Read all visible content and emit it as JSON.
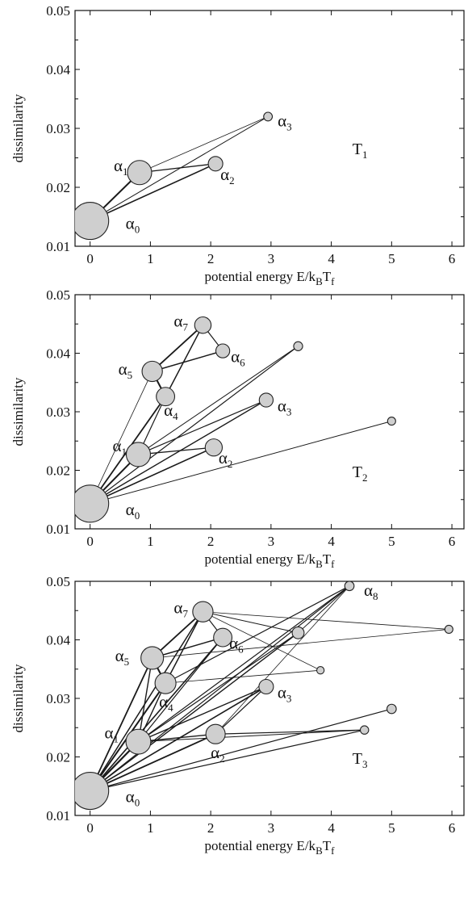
{
  "colors": {
    "node_fill": "#cfcfcf",
    "node_stroke": "#222222",
    "edge": "#1a1a1a",
    "axis": "#111111"
  },
  "chart_data": [
    {
      "type": "scatter",
      "panel_label": {
        "main": "T",
        "sub": "1"
      },
      "xlabel": "potential energy E/k_BT_f",
      "ylabel": "dissimilarity",
      "xlim": [
        -0.25,
        6.2
      ],
      "ylim": [
        0.01,
        0.05
      ],
      "x_ticks": [
        "0",
        "1",
        "2",
        "3",
        "4",
        "5",
        "6"
      ],
      "y_ticks": [
        "0.01",
        "0.02",
        "0.03",
        "0.04",
        "0.05"
      ],
      "nodes": [
        {
          "id": "a0",
          "x": 0.0,
          "y": 0.0143,
          "weight": 1.0,
          "label": {
            "sym": "α",
            "sub": "0"
          }
        },
        {
          "id": "a1",
          "x": 0.82,
          "y": 0.0225,
          "weight": 0.6,
          "label": {
            "sym": "α",
            "sub": "1"
          }
        },
        {
          "id": "a2",
          "x": 2.08,
          "y": 0.024,
          "weight": 0.3,
          "label": {
            "sym": "α",
            "sub": "2"
          }
        },
        {
          "id": "a3",
          "x": 2.95,
          "y": 0.032,
          "weight": 0.12,
          "label": {
            "sym": "α",
            "sub": "3"
          }
        }
      ],
      "edges": [
        {
          "from": "a0",
          "to": "a1",
          "w": 2.0
        },
        {
          "from": "a0",
          "to": "a2",
          "w": 1.6
        },
        {
          "from": "a1",
          "to": "a2",
          "w": 1.3
        },
        {
          "from": "a1",
          "to": "a3",
          "w": 0.8
        },
        {
          "from": "a0",
          "to": "a3",
          "w": 1.0
        }
      ]
    },
    {
      "type": "scatter",
      "panel_label": {
        "main": "T",
        "sub": "2"
      },
      "xlabel": "potential energy E/k_BT_f",
      "ylabel": "dissimilarity",
      "xlim": [
        -0.25,
        6.2
      ],
      "ylim": [
        0.01,
        0.05
      ],
      "x_ticks": [
        "0",
        "1",
        "2",
        "3",
        "4",
        "5",
        "6"
      ],
      "y_ticks": [
        "0.01",
        "0.02",
        "0.03",
        "0.04",
        "0.05"
      ],
      "nodes": [
        {
          "id": "a0",
          "x": 0.0,
          "y": 0.0143,
          "weight": 1.0,
          "label": {
            "sym": "α",
            "sub": "0"
          }
        },
        {
          "id": "a1",
          "x": 0.8,
          "y": 0.0227,
          "weight": 0.6,
          "label": {
            "sym": "α",
            "sub": "1"
          }
        },
        {
          "id": "a2",
          "x": 2.05,
          "y": 0.0239,
          "weight": 0.38,
          "label": {
            "sym": "α",
            "sub": "2"
          }
        },
        {
          "id": "a3",
          "x": 2.92,
          "y": 0.032,
          "weight": 0.28,
          "label": {
            "sym": "α",
            "sub": "3"
          }
        },
        {
          "id": "a4",
          "x": 1.25,
          "y": 0.0326,
          "weight": 0.42,
          "label": {
            "sym": "α",
            "sub": "4"
          }
        },
        {
          "id": "a5",
          "x": 1.03,
          "y": 0.0369,
          "weight": 0.48,
          "label": {
            "sym": "α",
            "sub": "5"
          }
        },
        {
          "id": "a6",
          "x": 2.2,
          "y": 0.0404,
          "weight": 0.28,
          "label": {
            "sym": "α",
            "sub": "6"
          }
        },
        {
          "id": "a7",
          "x": 1.87,
          "y": 0.0448,
          "weight": 0.36,
          "label": {
            "sym": "α",
            "sub": "7"
          }
        },
        {
          "id": "b1",
          "x": 3.45,
          "y": 0.0412,
          "weight": 0.13
        },
        {
          "id": "b2",
          "x": 5.0,
          "y": 0.0284,
          "weight": 0.1
        }
      ],
      "edges": [
        {
          "from": "a0",
          "to": "a1",
          "w": 2.0
        },
        {
          "from": "a0",
          "to": "a2",
          "w": 1.6
        },
        {
          "from": "a0",
          "to": "a3",
          "w": 1.4
        },
        {
          "from": "a0",
          "to": "a4",
          "w": 1.8
        },
        {
          "from": "a0",
          "to": "a5",
          "w": 0.8
        },
        {
          "from": "a0",
          "to": "b1",
          "w": 1.2
        },
        {
          "from": "a0",
          "to": "b2",
          "w": 1.0
        },
        {
          "from": "a1",
          "to": "a2",
          "w": 1.3
        },
        {
          "from": "a1",
          "to": "a3",
          "w": 1.2
        },
        {
          "from": "a1",
          "to": "a4",
          "w": 1.2
        },
        {
          "from": "a1",
          "to": "b1",
          "w": 1.0
        },
        {
          "from": "a5",
          "to": "a7",
          "w": 1.8
        },
        {
          "from": "a5",
          "to": "a6",
          "w": 1.5
        },
        {
          "from": "a5",
          "to": "a4",
          "w": 2.0
        },
        {
          "from": "a7",
          "to": "a6",
          "w": 1.2
        },
        {
          "from": "a7",
          "to": "a4",
          "w": 1.5
        }
      ]
    },
    {
      "type": "scatter",
      "panel_label": {
        "main": "T",
        "sub": "3"
      },
      "xlabel": "potential energy E/k_BT_f",
      "ylabel": "dissimilarity",
      "xlim": [
        -0.25,
        6.2
      ],
      "ylim": [
        0.01,
        0.05
      ],
      "x_ticks": [
        "0",
        "1",
        "2",
        "3",
        "4",
        "5",
        "6"
      ],
      "y_ticks": [
        "0.01",
        "0.02",
        "0.03",
        "0.04",
        "0.05"
      ],
      "nodes": [
        {
          "id": "a0",
          "x": 0.0,
          "y": 0.0142,
          "weight": 1.0,
          "label": {
            "sym": "α",
            "sub": "0"
          }
        },
        {
          "id": "a1",
          "x": 0.8,
          "y": 0.0226,
          "weight": 0.62,
          "label": {
            "sym": "α",
            "sub": "1"
          }
        },
        {
          "id": "a2",
          "x": 2.08,
          "y": 0.0239,
          "weight": 0.45,
          "label": {
            "sym": "α",
            "sub": "2"
          }
        },
        {
          "id": "a3",
          "x": 2.92,
          "y": 0.032,
          "weight": 0.3,
          "label": {
            "sym": "α",
            "sub": "3"
          }
        },
        {
          "id": "a4",
          "x": 1.25,
          "y": 0.0326,
          "weight": 0.5,
          "label": {
            "sym": "α",
            "sub": "4"
          }
        },
        {
          "id": "a5",
          "x": 1.03,
          "y": 0.0369,
          "weight": 0.55,
          "label": {
            "sym": "α",
            "sub": "5"
          }
        },
        {
          "id": "a6",
          "x": 2.2,
          "y": 0.0404,
          "weight": 0.42,
          "label": {
            "sym": "α",
            "sub": "6"
          }
        },
        {
          "id": "a7",
          "x": 1.87,
          "y": 0.0448,
          "weight": 0.48,
          "label": {
            "sym": "α",
            "sub": "7"
          }
        },
        {
          "id": "a8",
          "x": 4.3,
          "y": 0.0492,
          "weight": 0.14,
          "label": {
            "sym": "α",
            "sub": "8"
          }
        },
        {
          "id": "b1",
          "x": 3.45,
          "y": 0.0412,
          "weight": 0.22
        },
        {
          "id": "b2",
          "x": 5.0,
          "y": 0.0282,
          "weight": 0.14
        },
        {
          "id": "b3",
          "x": 4.55,
          "y": 0.0246,
          "weight": 0.11
        },
        {
          "id": "b4",
          "x": 5.95,
          "y": 0.0418,
          "weight": 0.1
        },
        {
          "id": "b5",
          "x": 3.82,
          "y": 0.0348,
          "weight": 0.08
        }
      ],
      "edges": [
        {
          "from": "a0",
          "to": "a1",
          "w": 2.2
        },
        {
          "from": "a0",
          "to": "a2",
          "w": 1.8
        },
        {
          "from": "a0",
          "to": "a3",
          "w": 1.6
        },
        {
          "from": "a0",
          "to": "a4",
          "w": 2.0
        },
        {
          "from": "a0",
          "to": "a5",
          "w": 1.8
        },
        {
          "from": "a0",
          "to": "a6",
          "w": 1.6
        },
        {
          "from": "a0",
          "to": "a7",
          "w": 1.5
        },
        {
          "from": "a0",
          "to": "a8",
          "w": 1.2
        },
        {
          "from": "a0",
          "to": "b1",
          "w": 1.4
        },
        {
          "from": "a0",
          "to": "b2",
          "w": 1.2
        },
        {
          "from": "a0",
          "to": "b3",
          "w": 1.2
        },
        {
          "from": "a1",
          "to": "a2",
          "w": 1.4
        },
        {
          "from": "a1",
          "to": "a3",
          "w": 1.4
        },
        {
          "from": "a1",
          "to": "a4",
          "w": 1.4
        },
        {
          "from": "a1",
          "to": "a6",
          "w": 1.2
        },
        {
          "from": "a1",
          "to": "a8",
          "w": 1.2
        },
        {
          "from": "a1",
          "to": "b1",
          "w": 1.2
        },
        {
          "from": "a1",
          "to": "b3",
          "w": 1.0
        },
        {
          "from": "a1",
          "to": "a5",
          "w": 1.4
        },
        {
          "from": "a2",
          "to": "a3",
          "w": 1.2
        },
        {
          "from": "a2",
          "to": "b3",
          "w": 1.2
        },
        {
          "from": "a4",
          "to": "a8",
          "w": 1.2
        },
        {
          "from": "a4",
          "to": "b5",
          "w": 0.8
        },
        {
          "from": "a5",
          "to": "a7",
          "w": 1.8
        },
        {
          "from": "a5",
          "to": "a6",
          "w": 1.5
        },
        {
          "from": "a5",
          "to": "a4",
          "w": 2.0
        },
        {
          "from": "a5",
          "to": "b4",
          "w": 0.8
        },
        {
          "from": "a7",
          "to": "a6",
          "w": 1.2
        },
        {
          "from": "a7",
          "to": "a4",
          "w": 1.5
        },
        {
          "from": "a7",
          "to": "b4",
          "w": 0.8
        },
        {
          "from": "a7",
          "to": "b5",
          "w": 0.8
        },
        {
          "from": "a7",
          "to": "b1",
          "w": 1.0
        },
        {
          "from": "a2",
          "to": "a8",
          "w": 0.8
        },
        {
          "from": "b1",
          "to": "a8",
          "w": 1.0
        }
      ]
    }
  ]
}
